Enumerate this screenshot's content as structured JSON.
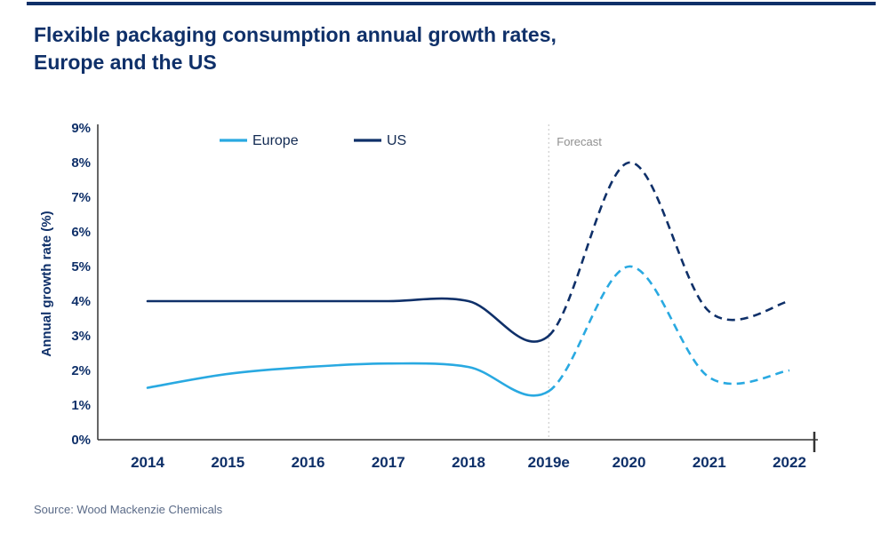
{
  "page": {
    "title": "Flexible packaging consumption annual growth rates,\nEurope and the US",
    "source": "Source: Wood Mackenzie Chemicals"
  },
  "colors": {
    "navy": "#0f3069",
    "europe_blue": "#29a9e1",
    "axis": "#333333",
    "forecast_line": "#c4c4c4",
    "forecast_text": "#8f8f8f",
    "source_text": "#5b6b88"
  },
  "chart_data": {
    "type": "line",
    "title": "Flexible packaging consumption annual growth rates, Europe and the US",
    "categories": [
      "2014",
      "2015",
      "2016",
      "2017",
      "2018",
      "2019e",
      "2020",
      "2021",
      "2022"
    ],
    "series": [
      {
        "name": "Europe",
        "color_key": "europe_blue",
        "values": [
          1.5,
          1.9,
          2.1,
          2.2,
          2.1,
          1.4,
          5.0,
          1.8,
          2.0
        ]
      },
      {
        "name": "US",
        "color_key": "navy",
        "values": [
          4.0,
          4.0,
          4.0,
          4.0,
          4.0,
          3.0,
          8.0,
          3.7,
          4.0
        ]
      }
    ],
    "xlabel": "",
    "ylabel": "Annual growth rate (%)",
    "ylim": [
      0,
      9
    ],
    "ytick_step": 1,
    "ytick_suffix": "%",
    "grid": false,
    "legend": {
      "entries": [
        "Europe",
        "US"
      ],
      "position": "top-inside"
    },
    "forecast": {
      "label": "Forecast",
      "start_index": 5
    },
    "line_style": {
      "solid_until_index": 5,
      "dashed_after_index": 5
    }
  }
}
